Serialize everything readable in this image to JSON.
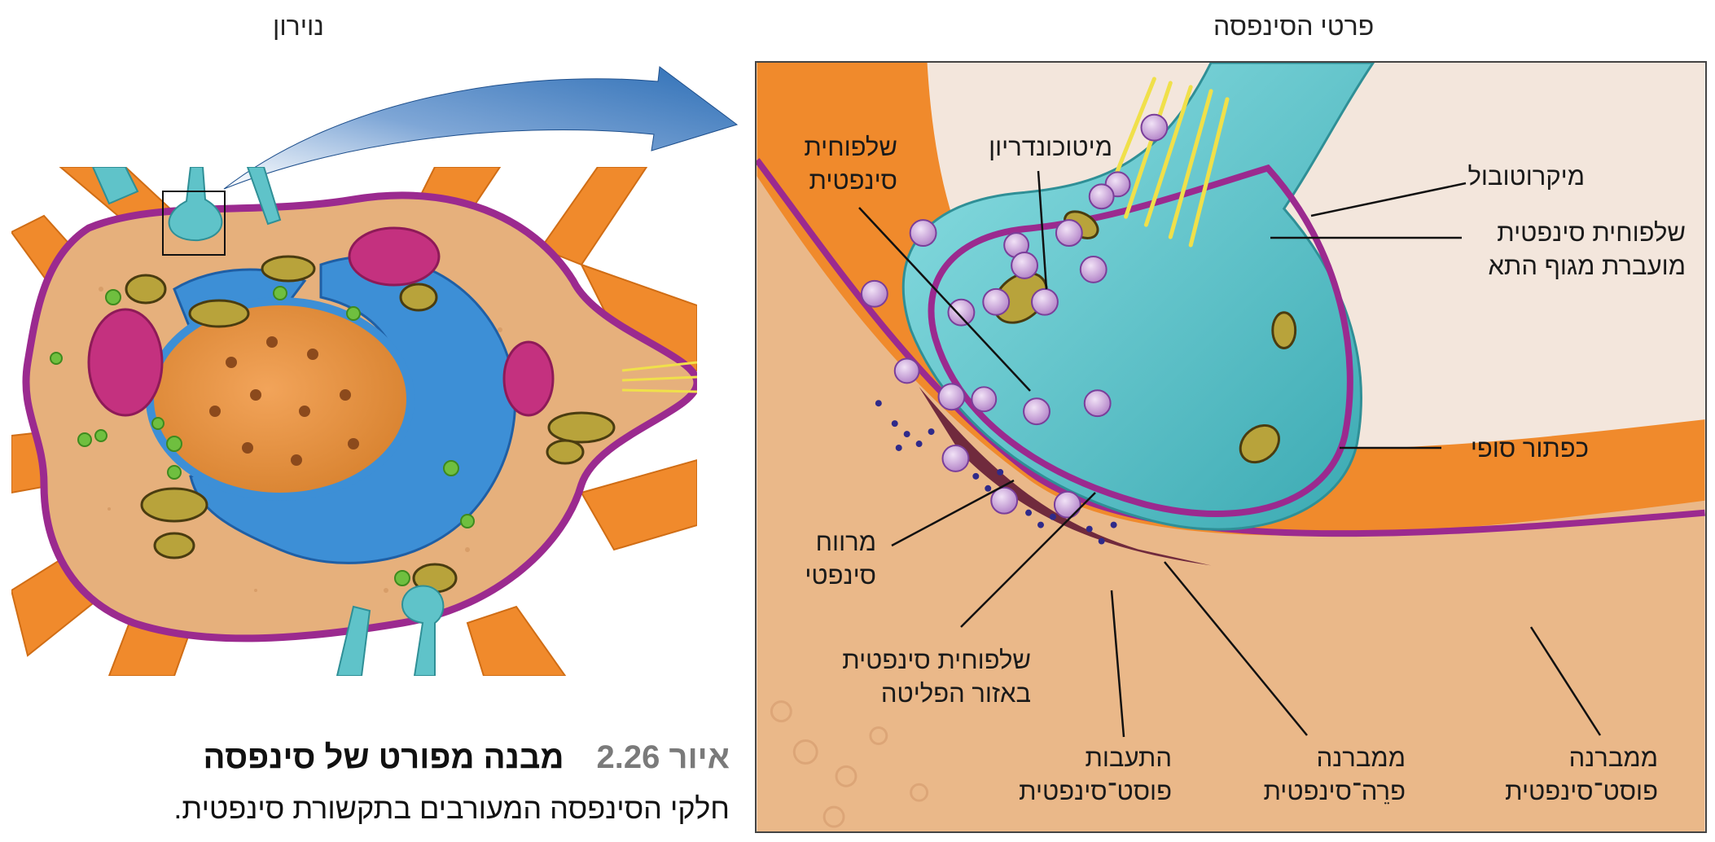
{
  "titles": {
    "neuron": "נוירון",
    "synapse_details": "פרטי הסינפסה"
  },
  "labels": {
    "vesicle_left": [
      "שלפוחית",
      "סינפטית"
    ],
    "mitochondrion": "מיטוכונדריון",
    "microtubule": "מיקרוטובול",
    "transported_vesicle": [
      "שלפוחית סינפטית",
      "מועברת מגוף התא"
    ],
    "terminal_button": "כפתור סופי",
    "synaptic_cleft": [
      "מרווח",
      "סינפטי"
    ],
    "release_vesicle": [
      "שלפוחית סינפטית",
      "באזור הפליטה"
    ],
    "postsynaptic_thickening": [
      "התעבות",
      "פוסט־סינפטית"
    ],
    "presynaptic_membrane": [
      "ממברנה",
      "פרֵה־סינפטית"
    ],
    "postsynaptic_membrane": [
      "ממברנה",
      "פוסט־סינפטית"
    ]
  },
  "caption": {
    "figure_prefix": "איור 2.26",
    "title": "מבנה מפורט של סינפסה",
    "text": "חלקי הסינפסה המעורבים בתקשורת סינפטית."
  },
  "colors": {
    "membrane": "#9b2a8f",
    "axon": "#5fc3c9",
    "dendrite": "#f08a2c",
    "cytoplasm": "#e8b583",
    "arrow": "#2e6fb6"
  }
}
